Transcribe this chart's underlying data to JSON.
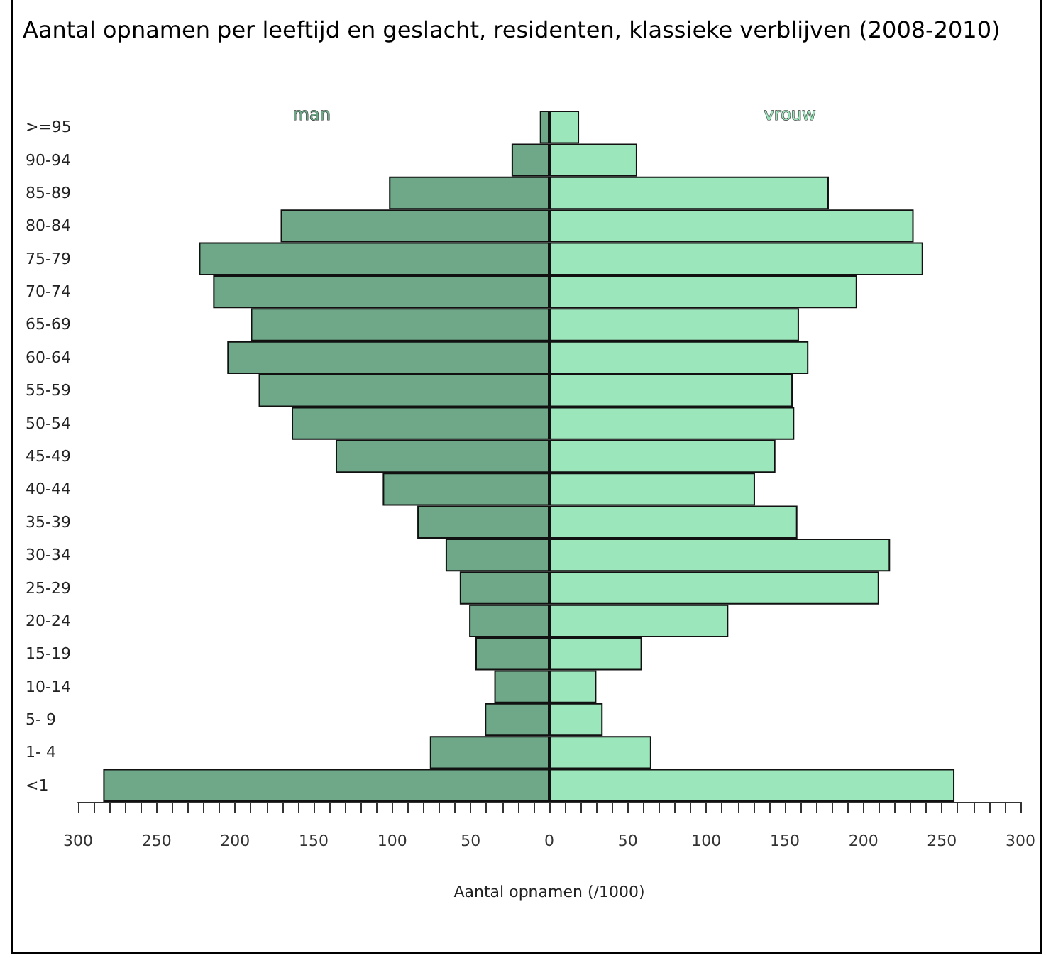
{
  "chart_data": {
    "type": "bar",
    "orientation": "horizontal",
    "stacked": true,
    "title": "Aantal opnamen per leeftijd en geslacht, residenten, klassieke verblijven (2008-2010)",
    "xlabel": "Aantal opnamen (/1000)",
    "categories": [
      ">=95",
      "90-94",
      "85-89",
      "80-84",
      "75-79",
      "70-74",
      "65-69",
      "60-64",
      "55-59",
      "50-54",
      "45-49",
      "40-44",
      "35-39",
      "30-34",
      "25-29",
      "20-24",
      "15-19",
      "10-14",
      "5- 9",
      "1- 4",
      "<1"
    ],
    "series": [
      {
        "name": "man",
        "color": "#6ea888",
        "values": [
          -6,
          -24,
          -102,
          -171,
          -223,
          -214,
          -190,
          -205,
          -185,
          -164,
          -136,
          -106,
          -84,
          -66,
          -57,
          -51,
          -47,
          -35,
          -41,
          -76,
          -284
        ]
      },
      {
        "name": "vrouw",
        "color": "#9be6bb",
        "values": [
          19,
          56,
          178,
          232,
          238,
          196,
          159,
          165,
          155,
          156,
          144,
          131,
          158,
          217,
          210,
          114,
          59,
          30,
          34,
          65,
          258
        ]
      }
    ],
    "xlim": [
      -300,
      300
    ],
    "xticks": [
      {
        "value": -300,
        "label": "300"
      },
      {
        "value": -290,
        "label": null
      },
      {
        "value": -280,
        "label": null
      },
      {
        "value": -270,
        "label": null
      },
      {
        "value": -260,
        "label": null
      },
      {
        "value": -250,
        "label": "250"
      },
      {
        "value": -240,
        "label": null
      },
      {
        "value": -230,
        "label": null
      },
      {
        "value": -220,
        "label": null
      },
      {
        "value": -210,
        "label": null
      },
      {
        "value": -200,
        "label": "200"
      },
      {
        "value": -190,
        "label": null
      },
      {
        "value": -180,
        "label": null
      },
      {
        "value": -170,
        "label": null
      },
      {
        "value": -160,
        "label": null
      },
      {
        "value": -150,
        "label": "150"
      },
      {
        "value": -140,
        "label": null
      },
      {
        "value": -130,
        "label": null
      },
      {
        "value": -120,
        "label": null
      },
      {
        "value": -110,
        "label": null
      },
      {
        "value": -100,
        "label": "100"
      },
      {
        "value": -90,
        "label": null
      },
      {
        "value": -80,
        "label": null
      },
      {
        "value": -70,
        "label": null
      },
      {
        "value": -60,
        "label": null
      },
      {
        "value": -50,
        "label": "50"
      },
      {
        "value": -40,
        "label": null
      },
      {
        "value": -30,
        "label": null
      },
      {
        "value": -20,
        "label": null
      },
      {
        "value": -10,
        "label": null
      },
      {
        "value": 0,
        "label": "0"
      },
      {
        "value": 10,
        "label": null
      },
      {
        "value": 20,
        "label": null
      },
      {
        "value": 30,
        "label": null
      },
      {
        "value": 40,
        "label": null
      },
      {
        "value": 50,
        "label": "50"
      },
      {
        "value": 60,
        "label": null
      },
      {
        "value": 70,
        "label": null
      },
      {
        "value": 80,
        "label": null
      },
      {
        "value": 90,
        "label": null
      },
      {
        "value": 100,
        "label": "100"
      },
      {
        "value": 110,
        "label": null
      },
      {
        "value": 120,
        "label": null
      },
      {
        "value": 130,
        "label": null
      },
      {
        "value": 140,
        "label": null
      },
      {
        "value": 150,
        "label": "150"
      },
      {
        "value": 160,
        "label": null
      },
      {
        "value": 170,
        "label": null
      },
      {
        "value": 180,
        "label": null
      },
      {
        "value": 190,
        "label": null
      },
      {
        "value": 200,
        "label": "200"
      },
      {
        "value": 210,
        "label": null
      },
      {
        "value": 220,
        "label": null
      },
      {
        "value": 230,
        "label": null
      },
      {
        "value": 240,
        "label": null
      },
      {
        "value": 250,
        "label": "250"
      },
      {
        "value": 260,
        "label": null
      },
      {
        "value": 270,
        "label": null
      },
      {
        "value": 280,
        "label": null
      },
      {
        "value": 290,
        "label": null
      },
      {
        "value": 300,
        "label": "300"
      }
    ],
    "grid": false,
    "legend": false
  }
}
